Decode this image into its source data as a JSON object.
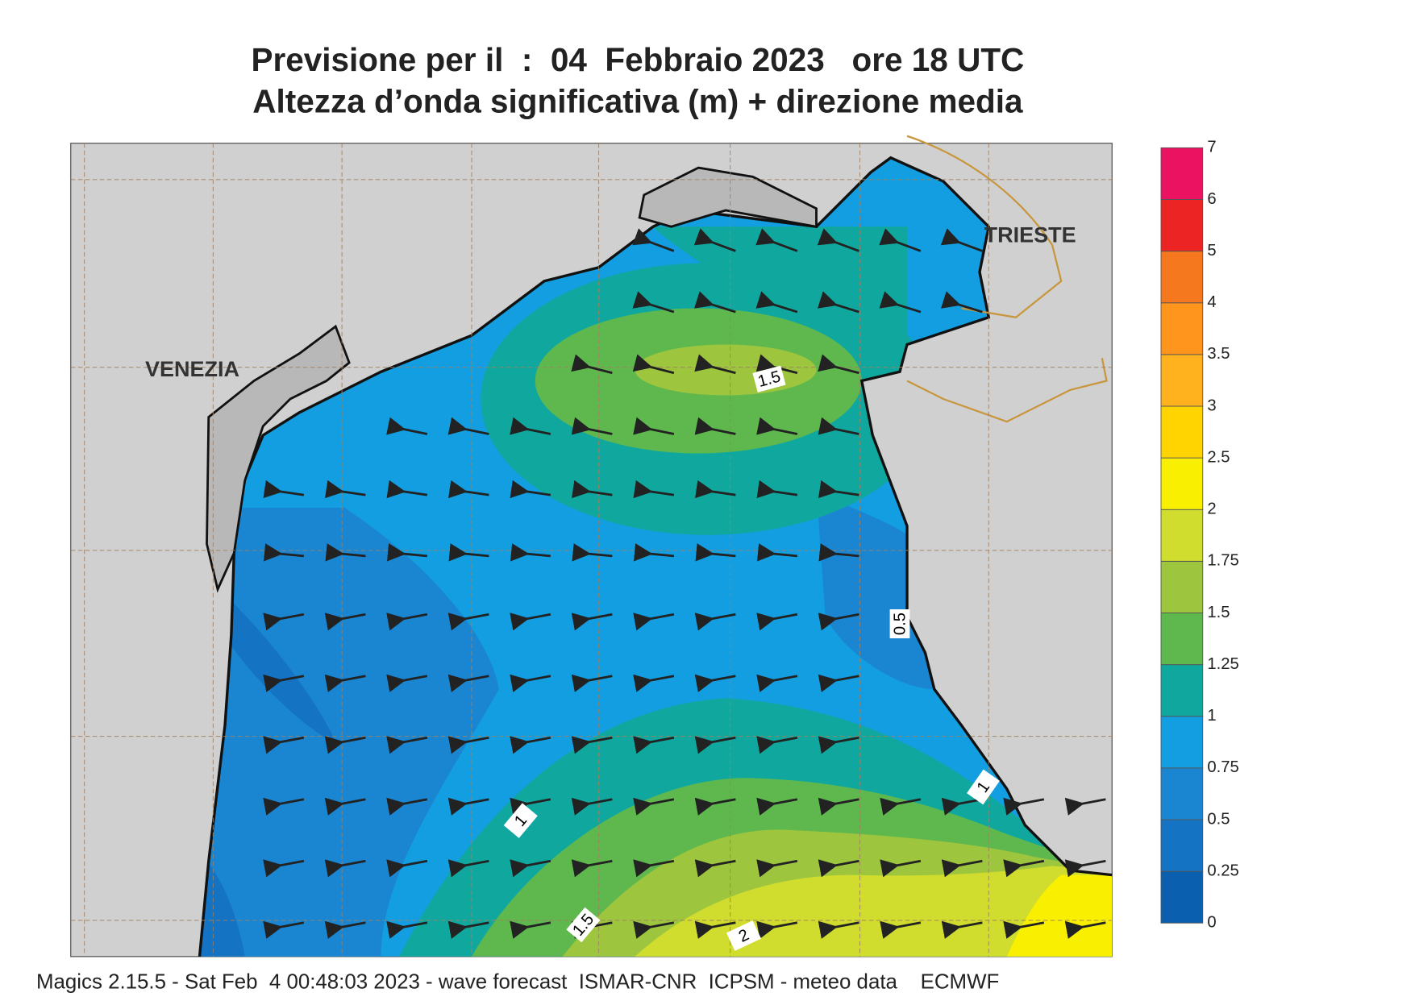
{
  "header": {
    "title": "Previsione per il  :  04  Febbraio 2023   ore 18 UTC",
    "subtitle": "Altezza d’onda significativa (m) + direzione media"
  },
  "map": {
    "places": [
      "VENEZIA",
      "TRIESTE"
    ],
    "contour_labels": [
      "1.5",
      "0.5",
      "1",
      "1",
      "1.5",
      "2"
    ]
  },
  "colorbar": {
    "ticks": [
      0,
      0.25,
      0.5,
      0.75,
      1,
      1.25,
      1.5,
      1.75,
      2,
      2.5,
      3,
      3.5,
      4,
      5,
      6,
      7
    ],
    "colors": [
      "#0a5fae",
      "#1473c2",
      "#1a86d2",
      "#129ee0",
      "#10a89e",
      "#5fb84e",
      "#9dc63e",
      "#d0dc2e",
      "#f8f000",
      "#ffd400",
      "#ffb21e",
      "#ff951c",
      "#f5771e",
      "#ec2424",
      "#ec1262"
    ]
  },
  "footer": "Magics 2.15.5 - Sat Feb  4 00:48:03 2023 - wave forecast  ISMAR-CNR  ICPSM - meteo data    ECMWF"
}
